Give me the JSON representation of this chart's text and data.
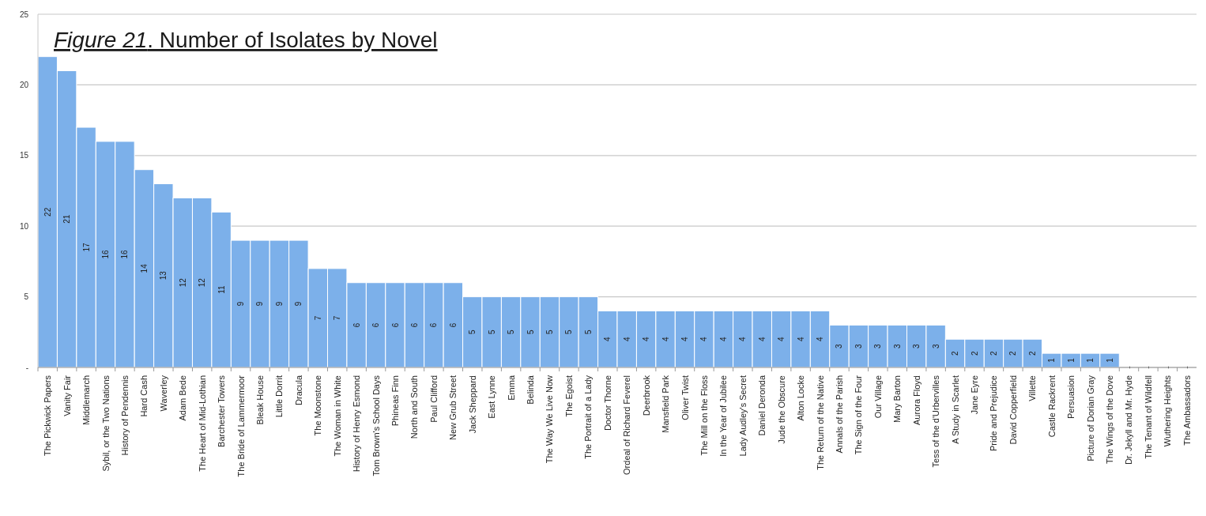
{
  "chart_data": {
    "type": "bar",
    "title": "Figure 21. Number of Isolates by Novel",
    "categories": [
      "The Pickwick Papers",
      "Vanity Fair",
      "Middlemarch",
      "Sybil, or the Two Nations",
      "History of Pendennis",
      "Hard Cash",
      "Waverley",
      "Adam Bede",
      "The Heart of Mid-Lothian",
      "Barchester Towers",
      "The Bride of Lammermoor",
      "Bleak House",
      "Little Dorrit",
      "Dracula",
      "The Moonstone",
      "The Woman in White",
      "History of Henry Esmond",
      "Tom Brown's School Days",
      "Phineas Finn",
      "North and South",
      "Paul Clifford",
      "New Grub Street",
      "Jack Sheppard",
      "East Lynne",
      "Emma",
      "Belinda",
      "The Way We Live Now",
      "The Egoist",
      "The Portrait of a Lady",
      "Doctor Thorne",
      "Ordeal of Richard Feverel",
      "Deerbrook",
      "Mansfield Park",
      "Oliver Twist",
      "The Mill on the Floss",
      "In the Year of Jubilee",
      "Lady Audley's Secret",
      "Daniel Deronda",
      "Jude the Obscure",
      "Alton Locke",
      "The Return of the Native",
      "Annals of the Parish",
      "The Sign of the Four",
      "Our Village",
      "Mary Barton",
      "Aurora Floyd",
      "Tess of the d'Urbervilles",
      "A Study in Scarlet",
      "Jane Eyre",
      "Pride and Prejudice",
      "David Copperfield",
      "Villette",
      "Castle Rackrent",
      "Persuasion",
      "Picture of Dorian Gray",
      "The Wings of the Dove",
      "Dr. Jekyll and Mr. Hyde",
      "The Tenant of Wildfell",
      "Wuthering Heights",
      "The Ambassadors"
    ],
    "values": [
      22,
      21,
      17,
      16,
      16,
      14,
      13,
      12,
      12,
      11,
      9,
      9,
      9,
      9,
      7,
      7,
      6,
      6,
      6,
      6,
      6,
      6,
      5,
      5,
      5,
      5,
      5,
      5,
      5,
      4,
      4,
      4,
      4,
      4,
      4,
      4,
      4,
      4,
      4,
      4,
      4,
      3,
      3,
      3,
      3,
      3,
      3,
      2,
      2,
      2,
      2,
      2,
      1,
      1,
      1,
      1,
      0,
      0,
      0,
      0
    ],
    "value_labels": [
      "22",
      "21",
      "17",
      "16",
      "16",
      "14",
      "13",
      "12",
      "12",
      "11",
      "9",
      "9",
      "9",
      "9",
      "7",
      "7",
      "6",
      "6",
      "6",
      "6",
      "6",
      "6",
      "5",
      "5",
      "5",
      "5",
      "5",
      "5",
      "5",
      "4",
      "4",
      "4",
      "4",
      "4",
      "4",
      "4",
      "4",
      "4",
      "4",
      "4",
      "4",
      "3",
      "3",
      "3",
      "3",
      "3",
      "3",
      "2",
      "2",
      "2",
      "2",
      "2",
      "1",
      "1",
      "1",
      "1",
      "-",
      "-",
      "-",
      "-"
    ],
    "color": "#7cb0ea",
    "ylim": [
      0,
      25
    ],
    "yticks": [
      {
        "value": 0,
        "label": "-"
      },
      5,
      10,
      15,
      20,
      25
    ],
    "grid": "y"
  }
}
